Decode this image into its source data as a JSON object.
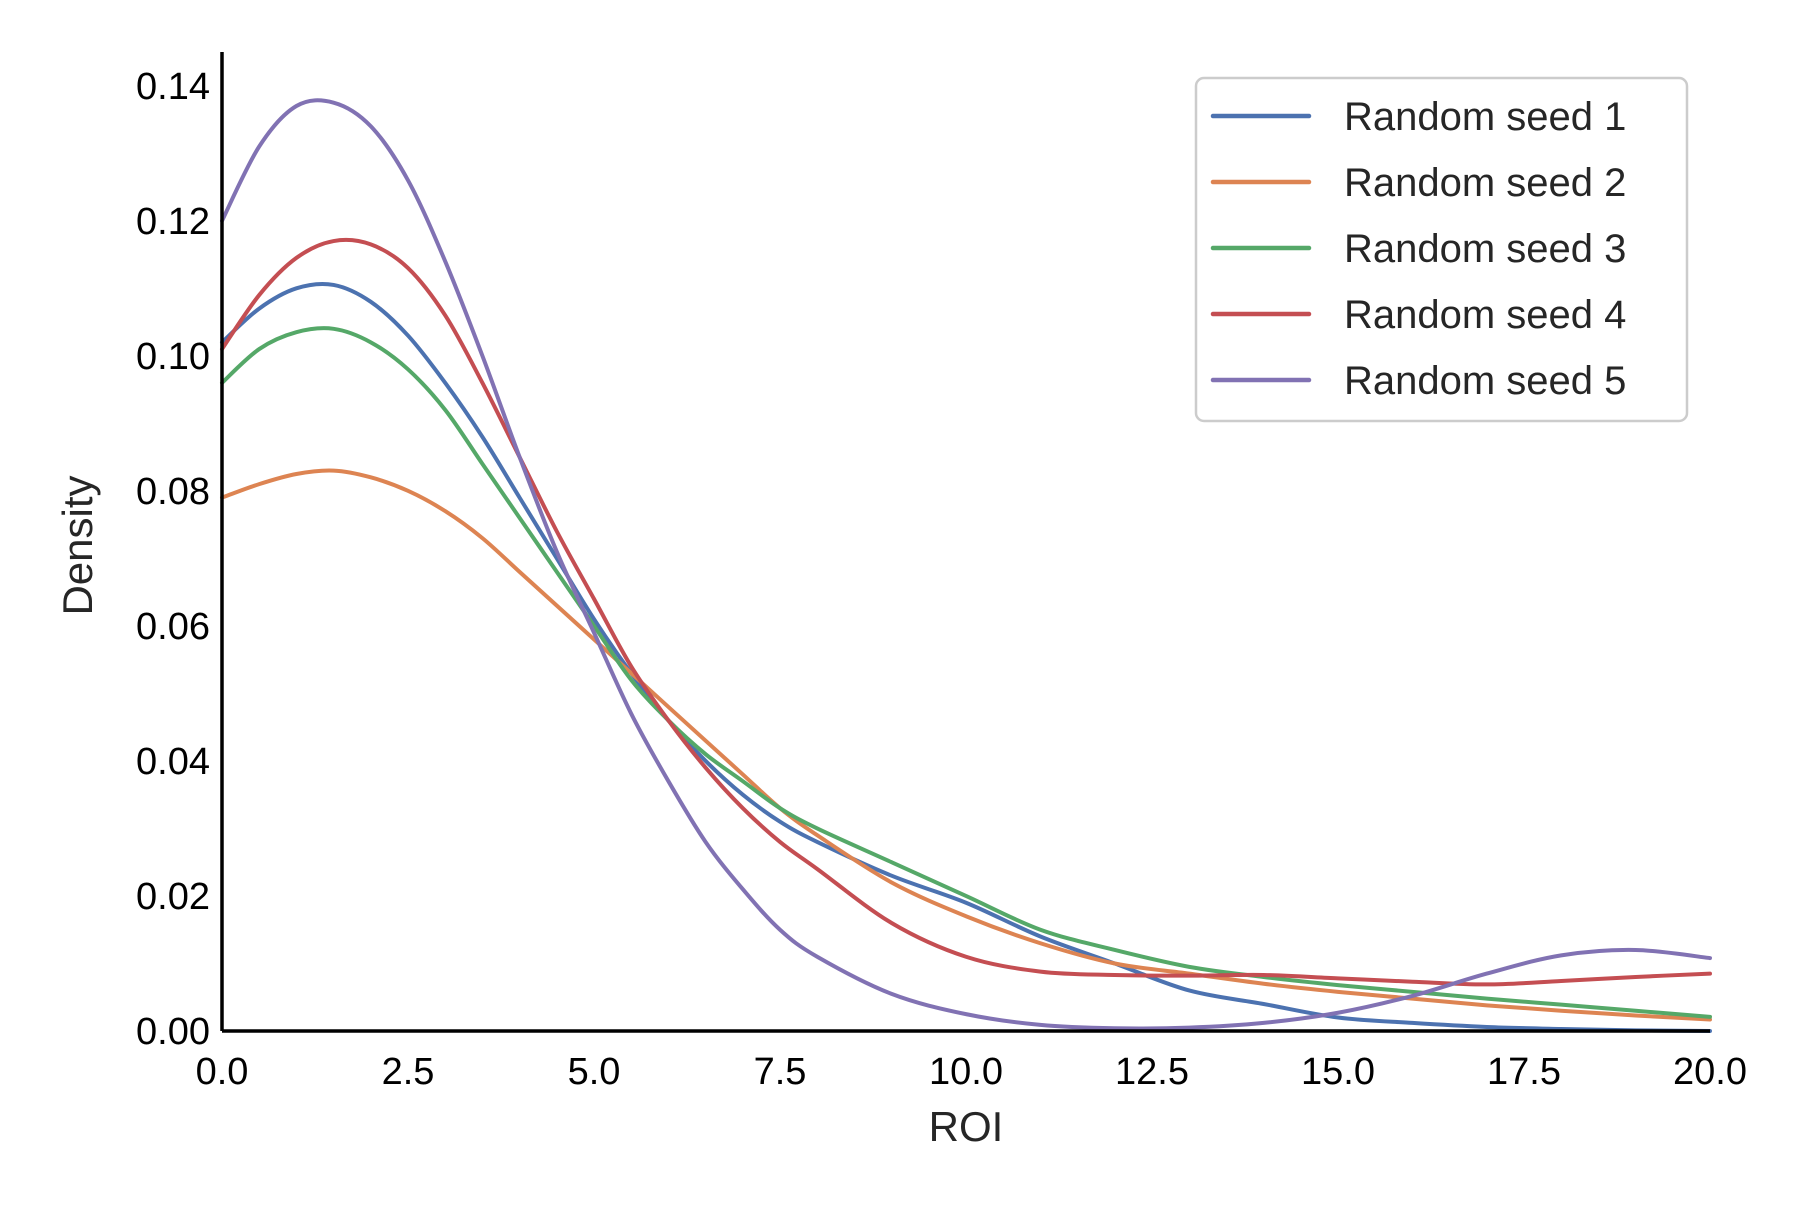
{
  "chart_data": {
    "type": "line",
    "title": "",
    "xlabel": "ROI",
    "ylabel": "Density",
    "xlim": [
      0,
      20
    ],
    "ylim": [
      0,
      0.145
    ],
    "x_ticks": [
      0,
      2.5,
      5,
      7.5,
      10,
      12.5,
      15,
      17.5,
      20
    ],
    "x_tick_labels": [
      "0.0",
      "2.5",
      "5.0",
      "7.5",
      "10.0",
      "12.5",
      "15.0",
      "17.5",
      "20.0"
    ],
    "y_ticks": [
      0,
      0.02,
      0.04,
      0.06,
      0.08,
      0.1,
      0.12,
      0.14
    ],
    "y_tick_labels": [
      "0.00",
      "0.02",
      "0.04",
      "0.06",
      "0.08",
      "0.10",
      "0.12",
      "0.14"
    ],
    "grid": false,
    "legend_position": "top-right",
    "series": [
      {
        "name": "Random seed 1",
        "color": "#4c72b0",
        "x": [
          0,
          0.5,
          1,
          1.5,
          2,
          2.5,
          3,
          3.5,
          4,
          4.5,
          5,
          5.5,
          6,
          6.5,
          7,
          7.5,
          8,
          9,
          10,
          11,
          12,
          13,
          14,
          15,
          16,
          17,
          18,
          19,
          20
        ],
        "y": [
          0.102,
          0.107,
          0.11,
          0.1105,
          0.108,
          0.103,
          0.096,
          0.088,
          0.079,
          0.07,
          0.061,
          0.053,
          0.046,
          0.04,
          0.035,
          0.031,
          0.028,
          0.023,
          0.019,
          0.014,
          0.01,
          0.006,
          0.004,
          0.002,
          0.0012,
          0.0006,
          0.0003,
          0.0001,
          0.0
        ]
      },
      {
        "name": "Random seed 2",
        "color": "#dd8452",
        "x": [
          0,
          0.5,
          1,
          1.5,
          2,
          2.5,
          3,
          3.5,
          4,
          4.5,
          5,
          5.5,
          6,
          6.5,
          7,
          7.5,
          8,
          9,
          10,
          11,
          12,
          13,
          14,
          15,
          16,
          17,
          18,
          19,
          20
        ],
        "y": [
          0.079,
          0.081,
          0.0825,
          0.083,
          0.082,
          0.08,
          0.077,
          0.073,
          0.068,
          0.063,
          0.058,
          0.053,
          0.048,
          0.043,
          0.038,
          0.033,
          0.029,
          0.022,
          0.017,
          0.013,
          0.01,
          0.0085,
          0.007,
          0.0058,
          0.0048,
          0.0038,
          0.003,
          0.0023,
          0.0017
        ]
      },
      {
        "name": "Random seed 3",
        "color": "#55a868",
        "x": [
          0,
          0.5,
          1,
          1.5,
          2,
          2.5,
          3,
          3.5,
          4,
          4.5,
          5,
          5.5,
          6,
          6.5,
          7,
          7.5,
          8,
          9,
          10,
          11,
          12,
          13,
          14,
          15,
          16,
          17,
          18,
          19,
          20
        ],
        "y": [
          0.096,
          0.101,
          0.1035,
          0.104,
          0.102,
          0.098,
          0.092,
          0.084,
          0.076,
          0.068,
          0.06,
          0.052,
          0.046,
          0.041,
          0.037,
          0.033,
          0.03,
          0.025,
          0.02,
          0.015,
          0.012,
          0.0095,
          0.008,
          0.0068,
          0.0058,
          0.0048,
          0.0039,
          0.003,
          0.0021
        ]
      },
      {
        "name": "Random seed 4",
        "color": "#c44e52",
        "x": [
          0,
          0.5,
          1,
          1.5,
          2,
          2.5,
          3,
          3.5,
          4,
          4.5,
          5,
          5.5,
          6,
          6.5,
          7,
          7.5,
          8,
          9,
          10,
          11,
          12,
          13,
          14,
          15,
          16,
          17,
          18,
          19,
          20
        ],
        "y": [
          0.101,
          0.109,
          0.1145,
          0.117,
          0.1165,
          0.113,
          0.106,
          0.096,
          0.085,
          0.074,
          0.064,
          0.054,
          0.046,
          0.039,
          0.033,
          0.028,
          0.024,
          0.016,
          0.011,
          0.0088,
          0.0083,
          0.0082,
          0.0083,
          0.0078,
          0.0073,
          0.0069,
          0.0074,
          0.008,
          0.0085
        ]
      },
      {
        "name": "Random seed 5",
        "color": "#8172b3",
        "x": [
          0,
          0.5,
          1,
          1.5,
          2,
          2.5,
          3,
          3.5,
          4,
          4.5,
          5,
          5.5,
          6,
          6.5,
          7,
          7.5,
          8,
          9,
          10,
          11,
          12,
          13,
          14,
          15,
          16,
          17,
          18,
          19,
          20
        ],
        "y": [
          0.12,
          0.131,
          0.137,
          0.1375,
          0.134,
          0.126,
          0.114,
          0.1,
          0.085,
          0.071,
          0.059,
          0.047,
          0.037,
          0.028,
          0.021,
          0.015,
          0.011,
          0.0055,
          0.0025,
          0.0009,
          0.0004,
          0.0005,
          0.0012,
          0.0027,
          0.0052,
          0.0085,
          0.0112,
          0.012,
          0.0108
        ]
      }
    ]
  }
}
